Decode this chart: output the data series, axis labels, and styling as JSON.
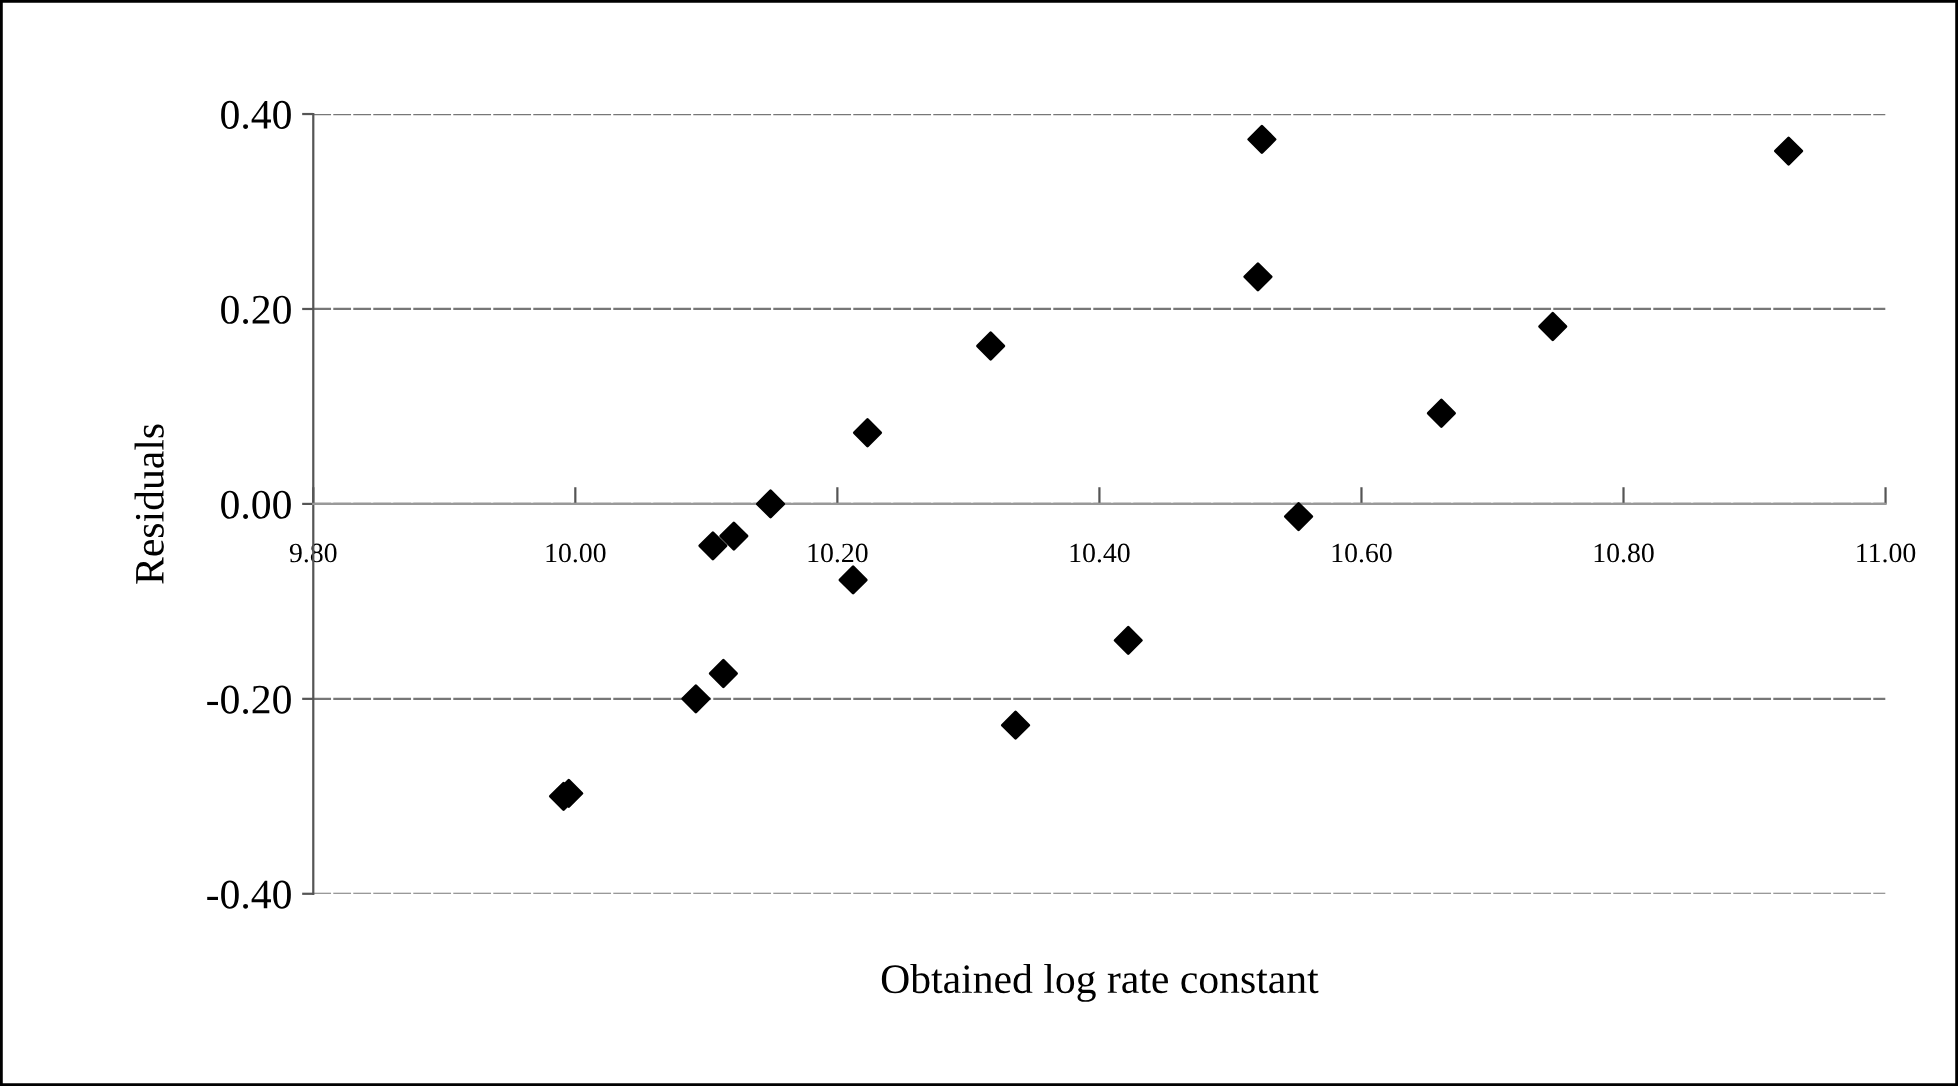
{
  "chart_data": {
    "type": "scatter",
    "xlabel": "Obtained log rate constant",
    "ylabel": "Residuals",
    "x": [
      9.991,
      9.995,
      10.092,
      10.113,
      10.105,
      10.121,
      10.149,
      10.212,
      10.223,
      10.317,
      10.336,
      10.422,
      10.524,
      10.521,
      10.552,
      10.661,
      10.746,
      10.926
    ],
    "series": [
      {
        "color": "#000000",
        "values": [
          -0.3,
          -0.297,
          -0.2,
          -0.174,
          -0.043,
          -0.033,
          0.0,
          -0.078,
          0.073,
          0.162,
          -0.227,
          -0.14,
          0.374,
          0.233,
          -0.013,
          0.093,
          0.182,
          0.362
        ]
      }
    ],
    "xlim": [
      9.8,
      11.0
    ],
    "ylim": [
      -0.4,
      0.4
    ],
    "xticks": [
      {
        "value": 9.8,
        "label": "9.80"
      },
      {
        "value": 10.0,
        "label": "10.00"
      },
      {
        "value": 10.2,
        "label": "10.20"
      },
      {
        "value": 10.4,
        "label": "10.40"
      },
      {
        "value": 10.6,
        "label": "10.60"
      },
      {
        "value": 10.8,
        "label": "10.80"
      },
      {
        "value": 11.0,
        "label": "11.00"
      }
    ],
    "yticks": [
      {
        "value": -0.4,
        "label": "-0.40"
      },
      {
        "value": -0.2,
        "label": "-0.20"
      },
      {
        "value": 0.0,
        "label": "0.00"
      },
      {
        "value": 0.2,
        "label": "0.20"
      },
      {
        "value": 0.4,
        "label": "0.40"
      }
    ],
    "grid": "y",
    "marker": "diamond",
    "legend": false
  }
}
